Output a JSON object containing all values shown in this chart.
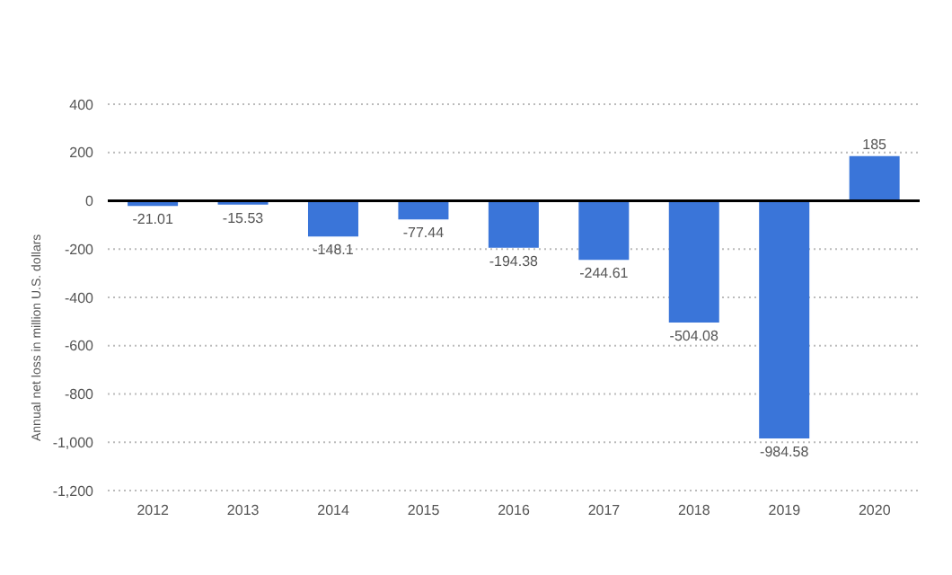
{
  "chart_data": {
    "type": "bar",
    "ylabel": "Annual net loss in million U.S. dollars",
    "categories": [
      "2012",
      "2013",
      "2014",
      "2015",
      "2016",
      "2017",
      "2018",
      "2019",
      "2020"
    ],
    "values": [
      -21.01,
      -15.53,
      -148.1,
      -77.44,
      -194.38,
      -244.61,
      -504.08,
      -984.58,
      185
    ],
    "color": "#3a75d9",
    "ylim": [
      -1200,
      400
    ],
    "yticks": [
      {
        "value": -1200,
        "label": "-1,200"
      },
      {
        "value": -1000,
        "label": "-1,000"
      },
      -800,
      -600,
      -400,
      -200,
      0,
      200,
      400
    ],
    "grid": "y",
    "data_labels": true,
    "ref_lines": [
      {
        "axis": "y",
        "value": 0,
        "color": "#000000"
      }
    ]
  }
}
